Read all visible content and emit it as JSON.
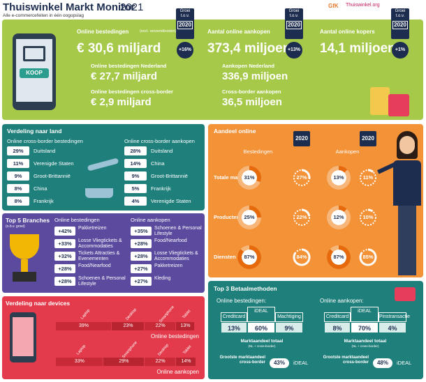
{
  "header": {
    "title": "Thuiswinkel Markt Monitor",
    "year": "2021",
    "subtitle": "Alle e-commercefeiten in één oogopslag",
    "logos": [
      "GfK",
      "Thuiswinkel.org"
    ]
  },
  "illustration_label": "KOOP",
  "growth_badge": {
    "line1": "Groei",
    "line2": "t.o.v.",
    "year": "2020"
  },
  "kpis": [
    {
      "label": "Online bestedingen",
      "note": "(excl. verzendkosten)",
      "value": "€ 30,6 miljard",
      "growth": "+16%"
    },
    {
      "label": "Aantal online aankopen",
      "value": "373,4 miljoen",
      "growth": "+13%"
    },
    {
      "label": "Aantal online kopers",
      "value": "14,1 miljoen",
      "growth": "+1%"
    }
  ],
  "sub_kpis": [
    [
      {
        "label": "Online bestedingen Nederland",
        "value": "€ 27,7 miljard"
      },
      {
        "label": "Online bestedingen cross-border",
        "value": "€ 2,9 miljard"
      }
    ],
    [
      {
        "label": "Aankopen Nederland",
        "value": "336,9 miljoen"
      },
      {
        "label": "Cross-border aankopen",
        "value": "36,5 miljoen"
      }
    ]
  ],
  "countries": {
    "title": "Verdeling naar land",
    "columns": [
      {
        "title": "Online cross-border bestedingen",
        "rows": [
          [
            "29%",
            "Duitsland"
          ],
          [
            "11%",
            "Verenigde Staten"
          ],
          [
            "9%",
            "Groot-Brittannië"
          ],
          [
            "8%",
            "China"
          ],
          [
            "8%",
            "Frankrijk"
          ]
        ]
      },
      {
        "title": "Online cross-border aankopen",
        "rows": [
          [
            "28%",
            "Duitsland"
          ],
          [
            "14%",
            "China"
          ],
          [
            "9%",
            "Groot-Brittannië"
          ],
          [
            "5%",
            "Frankrijk"
          ],
          [
            "4%",
            "Verenigde Staten"
          ]
        ]
      }
    ]
  },
  "branches": {
    "title": "Top 5 Branches",
    "note": "(o.b.v. groei)",
    "columns": [
      {
        "title": "Online bestedingen",
        "rows": [
          [
            "+42%",
            "Pakketreizen"
          ],
          [
            "+33%",
            "Losse Vliegtickets & Accommodaties"
          ],
          [
            "+32%",
            "Tickets Attracties & Evenementen"
          ],
          [
            "+28%",
            "Food/Nearfood"
          ],
          [
            "+28%",
            "Schoenen & Personal Lifestyle"
          ]
        ]
      },
      {
        "title": "Online aankopen",
        "rows": [
          [
            "+35%",
            "Schoenen & Personal Lifestyle"
          ],
          [
            "+28%",
            "Food/Nearfood"
          ],
          [
            "+28%",
            "Losse Vliegtickets & Accommodaties"
          ],
          [
            "+27%",
            "Pakketreizen"
          ],
          [
            "+27%",
            "Kleding"
          ]
        ]
      }
    ]
  },
  "devices": {
    "title": "Verdeling naar devices",
    "bars": [
      {
        "caption": "Online bestedingen",
        "segments": [
          {
            "name": "Laptop",
            "value": 39,
            "label": "39%"
          },
          {
            "name": "Desktop",
            "value": 23,
            "label": "23%"
          },
          {
            "name": "Smartphone",
            "value": 22,
            "label": "22%"
          },
          {
            "name": "Tablet",
            "value": 13,
            "label": "13%"
          }
        ]
      },
      {
        "caption": "Online aankopen",
        "segments": [
          {
            "name": "Laptop",
            "value": 33,
            "label": "33%"
          },
          {
            "name": "Smartphone",
            "value": 29,
            "label": "29%"
          },
          {
            "name": "Desktop",
            "value": 22,
            "label": "22%"
          },
          {
            "name": "Tablet",
            "value": 14,
            "label": "14%"
          }
        ]
      }
    ]
  },
  "share": {
    "title": "Aandeel online",
    "columns": [
      "Bestedingen",
      "Aankopen"
    ],
    "badge_year": "2020",
    "rows": [
      {
        "name": "Totale markt",
        "cells": [
          {
            "value": 31,
            "label": "31%"
          },
          {
            "value": 27,
            "label": "27%"
          },
          {
            "value": 13,
            "label": "13%"
          },
          {
            "value": 11,
            "label": "11%"
          }
        ]
      },
      {
        "name": "Producten",
        "cells": [
          {
            "value": 25,
            "label": "25%"
          },
          {
            "value": 22,
            "label": "22%"
          },
          {
            "value": 12,
            "label": "12%"
          },
          {
            "value": 10,
            "label": "10%"
          }
        ]
      },
      {
        "name": "Diensten",
        "cells": [
          {
            "value": 87,
            "label": "87%"
          },
          {
            "value": 84,
            "label": "84%"
          },
          {
            "value": 87,
            "label": "87%"
          },
          {
            "value": 85,
            "label": "85%"
          }
        ]
      }
    ]
  },
  "payments": {
    "title": "Top 3 Betaalmethoden",
    "total_label": "Marktaandeel totaal",
    "total_note": "(NL + cross-border)",
    "cross_label": "Grootste marktaandeel cross-border",
    "columns": [
      {
        "title": "Online bestedingen:",
        "methods": [
          {
            "name": "Creditcard",
            "label": "13%"
          },
          {
            "name": "iDEAL",
            "label": "60%"
          },
          {
            "name": "Machtiging",
            "label": "9%"
          }
        ],
        "cross_value": "43%",
        "cross_method": "iDEAL"
      },
      {
        "title": "Online aankopen:",
        "methods": [
          {
            "name": "Creditcard",
            "label": "8%"
          },
          {
            "name": "iDEAL",
            "label": "70%"
          },
          {
            "name": "Pinstransactie",
            "label": "4%"
          }
        ],
        "cross_value": "48%",
        "cross_method": "iDEAL"
      }
    ]
  }
}
